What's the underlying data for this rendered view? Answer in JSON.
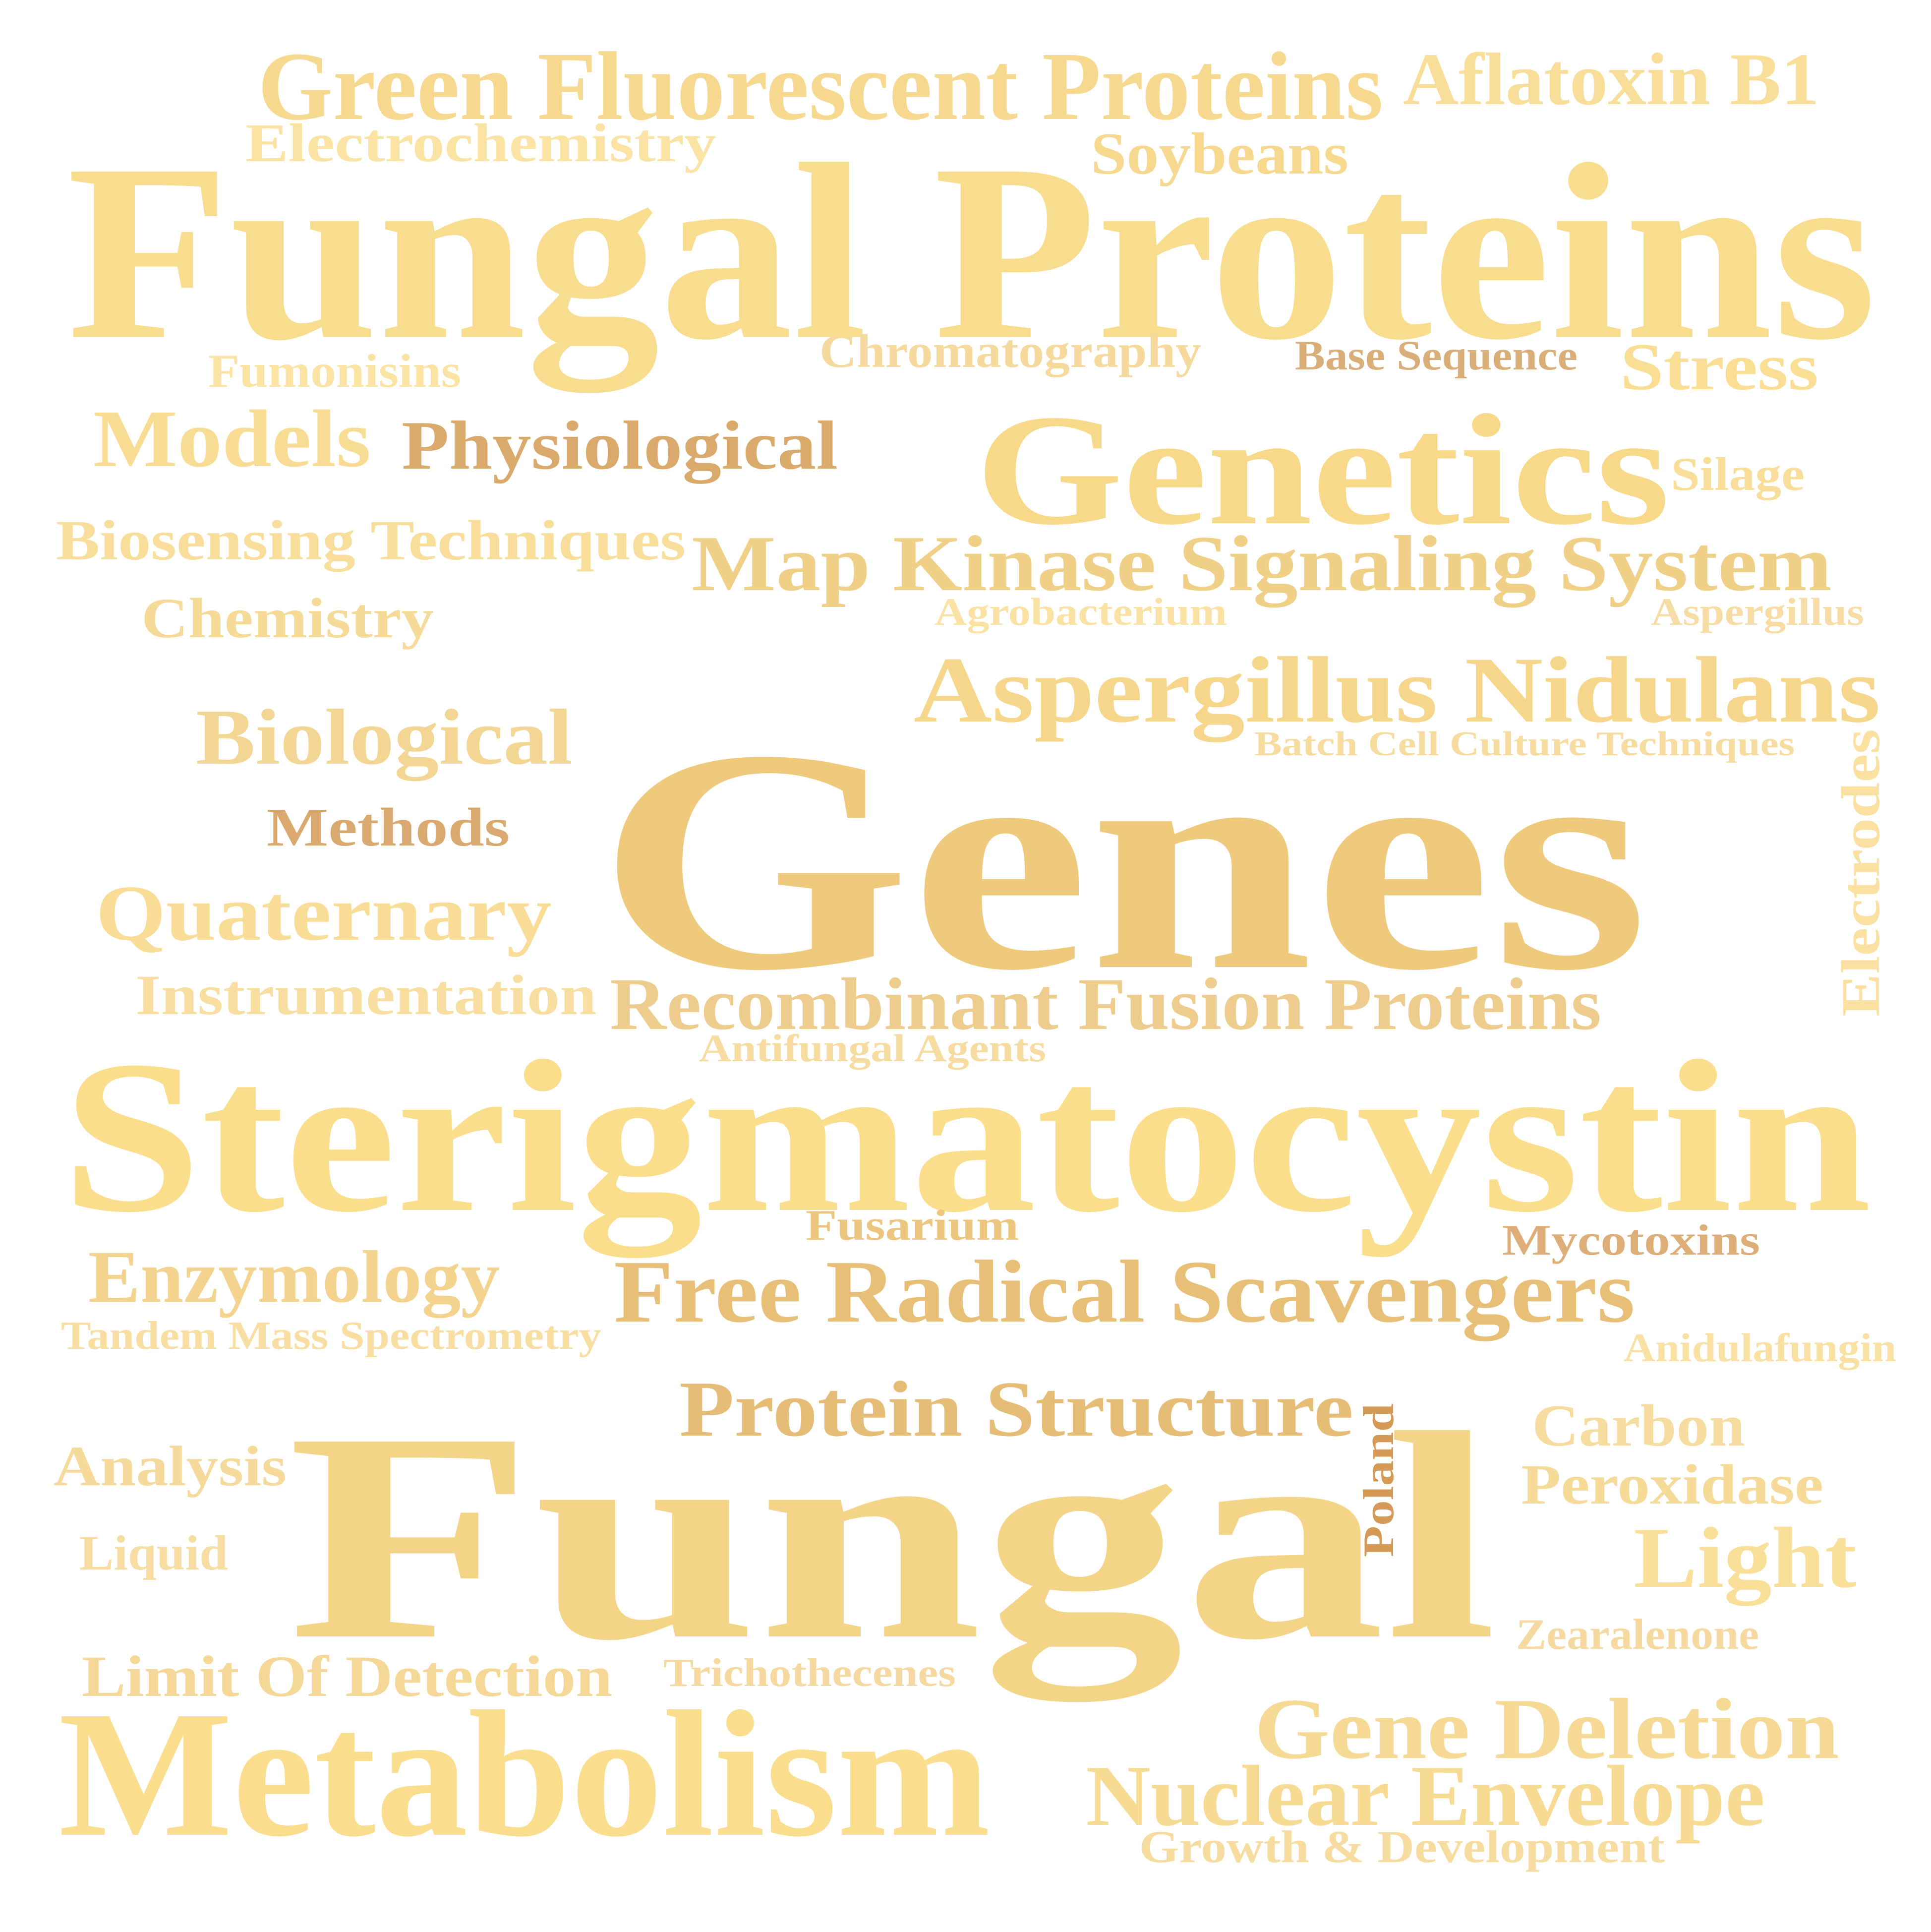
{
  "words": [
    {
      "text": "Green Fluorescent Proteins",
      "color": "#F6D98F"
    },
    {
      "text": "Aflatoxin B1",
      "color": "#F8DE98"
    },
    {
      "text": "Electrochemistry",
      "color": "#FBE4A3"
    },
    {
      "text": "Soybeans",
      "color": "#F6D98F"
    },
    {
      "text": "Fungal Proteins",
      "color": "#F9DD8E"
    },
    {
      "text": "Fumonisins",
      "color": "#FBE3A3"
    },
    {
      "text": "Chromatography",
      "color": "#F6DA9D"
    },
    {
      "text": "Base Sequence",
      "color": "#D9AE78"
    },
    {
      "text": "Stress",
      "color": "#F9DE93"
    },
    {
      "text": "Models",
      "color": "#F8DC93"
    },
    {
      "text": "Physiological",
      "color": "#D9AA6C"
    },
    {
      "text": "Genetics",
      "color": "#F8D98A"
    },
    {
      "text": "Silage",
      "color": "#F8DE99"
    },
    {
      "text": "Biosensing Techniques",
      "color": "#F8DE9A"
    },
    {
      "text": "Map Kinase Signaling System",
      "color": "#F0CF87"
    },
    {
      "text": "Agrobacterium",
      "color": "#FAE2A4"
    },
    {
      "text": "Aspergillus",
      "color": "#F7DDA5"
    },
    {
      "text": "Chemistry",
      "color": "#F6DB98"
    },
    {
      "text": "Aspergillus Nidulans",
      "color": "#F6D68B"
    },
    {
      "text": "Batch Cell Culture Techniques",
      "color": "#F7DCA0"
    },
    {
      "text": "Biological",
      "color": "#F3D594"
    },
    {
      "text": "Genes",
      "color": "#EFCA7C"
    },
    {
      "text": "Electrodes",
      "color": "#FAE1A2"
    },
    {
      "text": "Methods",
      "color": "#D9A96F"
    },
    {
      "text": "Quaternary",
      "color": "#F9DD97"
    },
    {
      "text": "Instrumentation",
      "color": "#F8DEA0"
    },
    {
      "text": "Recombinant Fusion Proteins",
      "color": "#EDCC8D"
    },
    {
      "text": "Antifungal Agents",
      "color": "#F6DCA1"
    },
    {
      "text": "Sterigmatocystin",
      "color": "#FBDE8C"
    },
    {
      "text": "Fusarium",
      "color": "#ECC67E"
    },
    {
      "text": "Mycotoxins",
      "color": "#DDAE78"
    },
    {
      "text": "Enzymology",
      "color": "#F3D38D"
    },
    {
      "text": "Free Radical Scavengers",
      "color": "#E8BF77"
    },
    {
      "text": "Tandem Mass Spectrometry",
      "color": "#F8DEA0"
    },
    {
      "text": "Anidulafungin",
      "color": "#F9E1A4"
    },
    {
      "text": "Protein Structure",
      "color": "#E6BD76"
    },
    {
      "text": "Carbon",
      "color": "#F7DC9F"
    },
    {
      "text": "Poland",
      "color": "#D49A56"
    },
    {
      "text": "Analysis",
      "color": "#F6DA9C"
    },
    {
      "text": "Fungal",
      "color": "#F4D487"
    },
    {
      "text": "Peroxidase",
      "color": "#F6DA98"
    },
    {
      "text": "Liquid",
      "color": "#F7DDA2"
    },
    {
      "text": "Light",
      "color": "#FADF98"
    },
    {
      "text": "Zearalenone",
      "color": "#F5D9A0"
    },
    {
      "text": "Limit Of Detection",
      "color": "#F5D797"
    },
    {
      "text": "Trichothecenes",
      "color": "#F5D9A0"
    },
    {
      "text": "Gene Deletion",
      "color": "#F6D994"
    },
    {
      "text": "Metabolism",
      "color": "#FBDD8E"
    },
    {
      "text": "Nuclear Envelope",
      "color": "#F8DB93"
    },
    {
      "text": "Growth & Development",
      "color": "#F7DC9F"
    }
  ]
}
